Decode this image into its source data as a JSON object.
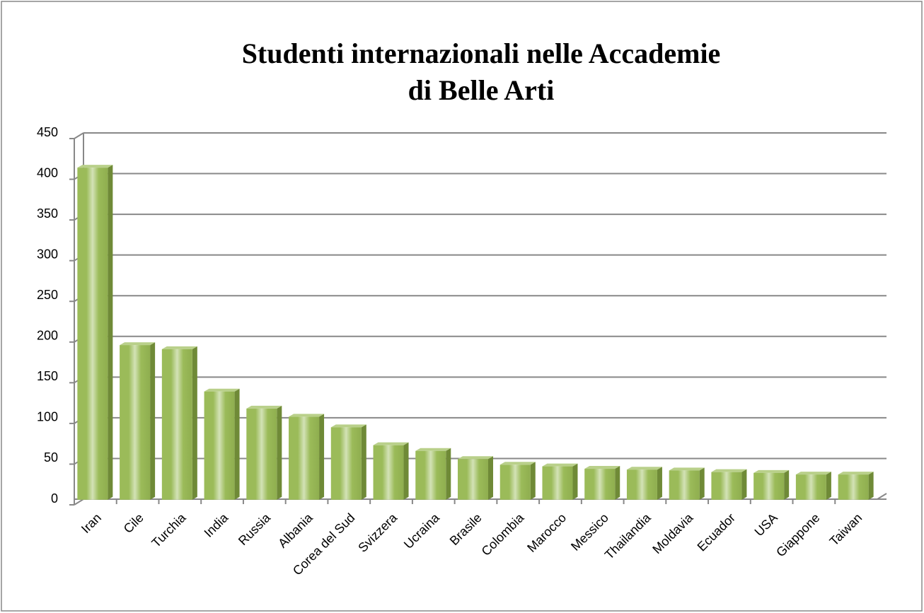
{
  "chart_data": {
    "type": "bar",
    "title": [
      "Studenti internazionali nelle Accademie",
      "di Belle Arti"
    ],
    "categories": [
      "Iran",
      "Cile",
      "Turchia",
      "India",
      "Russia",
      "Albania",
      "Corea del Sud",
      "Svizzera",
      "Ucraina",
      "Brasile",
      "Colombia",
      "Marocco",
      "Messico",
      "Thailandia",
      "Moldavia",
      "Ecuador",
      "USA",
      "Giappone",
      "Taiwan"
    ],
    "values": [
      408,
      190,
      185,
      133,
      112,
      102,
      89,
      67,
      60,
      50,
      43,
      41,
      38,
      37,
      36,
      34,
      33,
      31,
      31
    ],
    "color": "#9bbb59",
    "ylim": [
      0,
      450
    ],
    "yticks": [
      0,
      50,
      100,
      150,
      200,
      250,
      300,
      350,
      400,
      450
    ],
    "grid": true
  }
}
